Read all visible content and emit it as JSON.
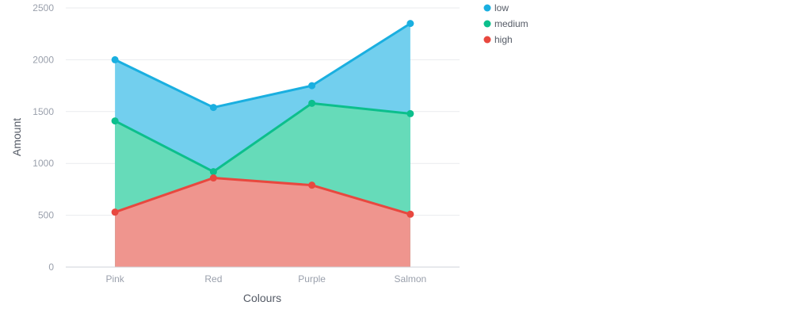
{
  "chart_data": {
    "type": "area",
    "stacked": false,
    "categories": [
      "Pink",
      "Red",
      "Purple",
      "Salmon"
    ],
    "series": [
      {
        "name": "low",
        "values": [
          2000,
          1540,
          1750,
          2350
        ],
        "color": "#1aafe0"
      },
      {
        "name": "medium",
        "values": [
          1410,
          920,
          1580,
          1480
        ],
        "color": "#0cbf8c"
      },
      {
        "name": "high",
        "values": [
          530,
          860,
          790,
          510
        ],
        "color": "#e8483f"
      }
    ],
    "fill_colors": [
      "#72cfee",
      "#66dbb9",
      "#ef958e"
    ],
    "xlabel": "Colours",
    "ylabel": "Amount",
    "ylim": [
      0,
      2500
    ],
    "yticks": [
      "0",
      "500",
      "1000",
      "1500",
      "2000",
      "2500"
    ],
    "grid": true,
    "legend_position": "top-right"
  }
}
